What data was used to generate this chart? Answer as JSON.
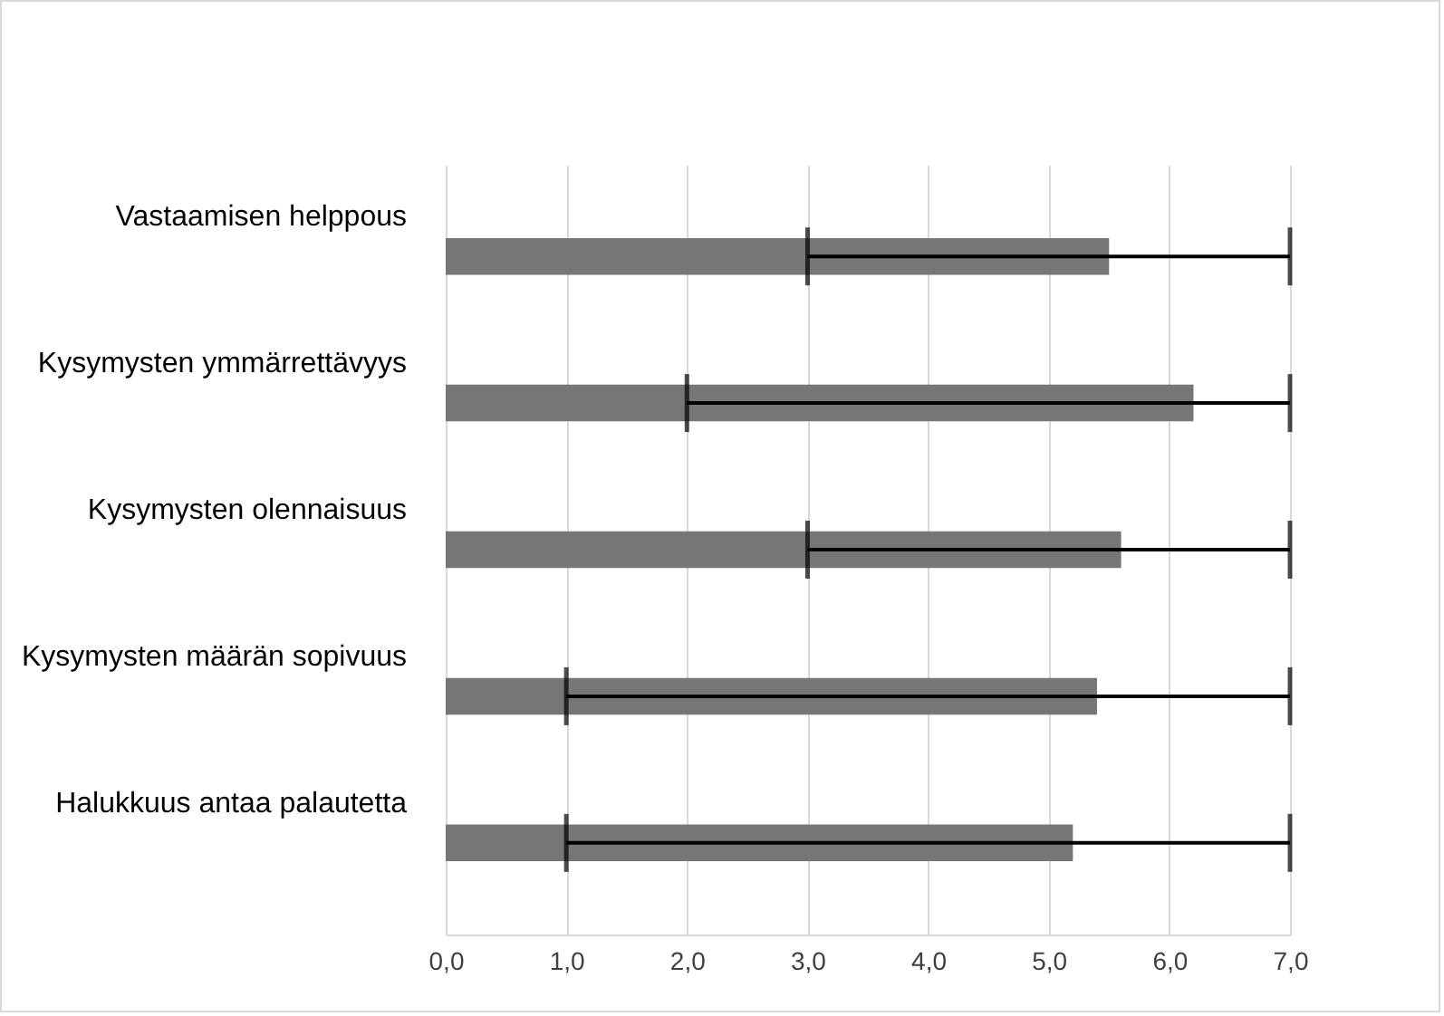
{
  "chart_data": {
    "type": "bar",
    "orientation": "horizontal",
    "categories": [
      "Vastaamisen helppous",
      "Kysymysten ymmärrettävyys",
      "Kysymysten olennaisuus",
      "Kysymysten määrän sopivuus",
      "Halukkuus antaa palautetta"
    ],
    "values": [
      5.5,
      6.2,
      5.6,
      5.4,
      5.2
    ],
    "errors": [
      [
        3.0,
        7.0
      ],
      [
        2.0,
        7.0
      ],
      [
        3.0,
        7.0
      ],
      [
        1.0,
        7.0
      ],
      [
        1.0,
        7.0
      ]
    ],
    "color": "#767676",
    "xlim": [
      0,
      7
    ],
    "xticks": [
      {
        "value": 0,
        "label": "0,0"
      },
      {
        "value": 1,
        "label": "1,0"
      },
      {
        "value": 2,
        "label": "2,0"
      },
      {
        "value": 3,
        "label": "3,0"
      },
      {
        "value": 4,
        "label": "4,0"
      },
      {
        "value": 5,
        "label": "5,0"
      },
      {
        "value": 6,
        "label": "6,0"
      },
      {
        "value": 7,
        "label": "7,0"
      }
    ],
    "grid": "x"
  }
}
